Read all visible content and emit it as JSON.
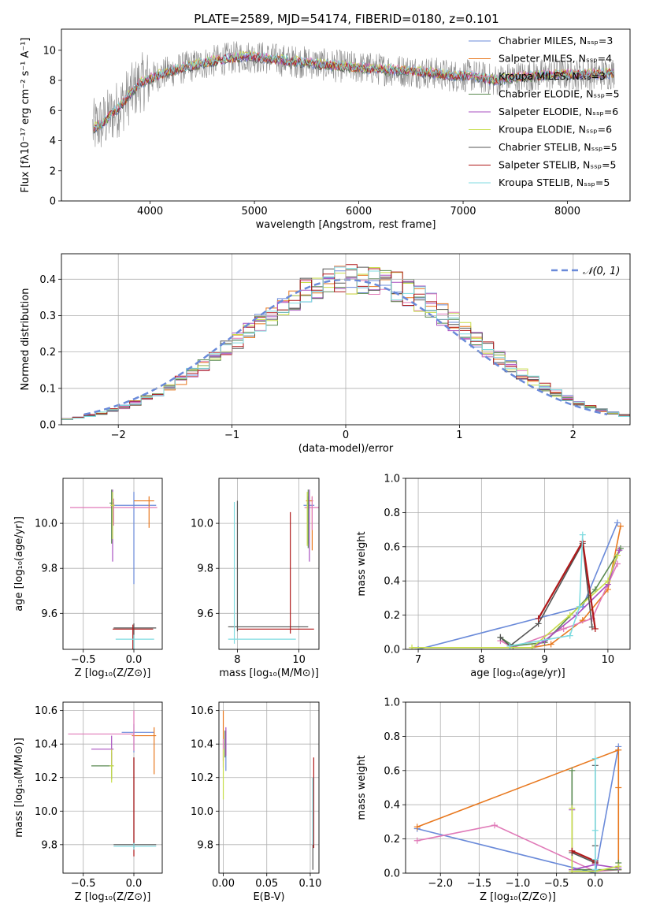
{
  "colors": {
    "chabrier_miles": "#6a8ad9",
    "salpeter_miles": "#e8781e",
    "kroupa_miles": "#e07ab8",
    "chabrier_elodie": "#5a8a50",
    "salpeter_elodie": "#a84fc0",
    "kroupa_elodie": "#c7dd4a",
    "chabrier_stelib": "#555555",
    "salpeter_stelib": "#b0191a",
    "kroupa_stelib": "#7fdbe0",
    "data": "#888888",
    "grid": "#b0b0b0"
  },
  "chart_data": [
    {
      "id": "spectrum",
      "type": "line",
      "title": "PLATE=2589, MJD=54174, FIBERID=0180, z=0.101",
      "xlabel": "wavelength [Angstrom, rest frame]",
      "ylabel": "Flux [fλ10⁻¹⁷ erg cm⁻² s⁻¹ A⁻¹]",
      "xlim": [
        3150,
        8600
      ],
      "ylim": [
        0,
        11.4
      ],
      "xticks": [
        "4000",
        "5000",
        "6000",
        "7000",
        "8000"
      ],
      "yticks": [
        "0",
        "2",
        "4",
        "6",
        "8",
        "10"
      ],
      "grid": false,
      "legend_position": "top-right",
      "legend": [
        "Chabrier MILES, Nₛₛₚ=3",
        "Salpeter MILES, Nₛₛₚ=4",
        "Kroupa MILES, Nₛₛₚ=3",
        "Chabrier ELODIE, Nₛₛₚ=5",
        "Salpeter ELODIE, Nₛₛₚ=6",
        "Kroupa ELODIE, Nₛₛₚ=6",
        "Chabrier STELIB, Nₛₛₚ=5",
        "Salpeter STELIB, Nₛₛₚ=5",
        "Kroupa STELIB, Nₛₛₚ=5"
      ],
      "continuum": {
        "x": [
          3450,
          3550,
          3700,
          3900,
          4100,
          4300,
          4500,
          4700,
          4900,
          5100,
          5300,
          5500,
          5700,
          5900,
          6100,
          6300,
          6500,
          6700,
          6900,
          7100,
          7300,
          7500,
          7700,
          7900,
          8100,
          8300,
          8450
        ],
        "y": [
          4.8,
          5.2,
          6.2,
          7.8,
          8.4,
          8.8,
          9.1,
          9.4,
          9.6,
          9.5,
          9.3,
          9.2,
          9.0,
          8.9,
          8.8,
          8.7,
          8.6,
          8.5,
          8.3,
          8.3,
          8.0,
          8.2,
          8.3,
          8.4,
          8.4,
          8.4,
          8.5
        ]
      }
    },
    {
      "id": "residuals",
      "type": "line",
      "xlabel": "(data-model)/error",
      "ylabel": "Normed distribution",
      "xlim": [
        -2.5,
        2.5
      ],
      "ylim": [
        0,
        0.47
      ],
      "xticks": [
        "−2",
        "−1",
        "0",
        "1",
        "2"
      ],
      "yticks": [
        "0.0",
        "0.1",
        "0.2",
        "0.3",
        "0.4"
      ],
      "grid": true,
      "legend_position": "top-right",
      "legend": [
        "𝒩(0, 1)"
      ],
      "gaussian": {
        "mean": 0,
        "sigma": 1,
        "xrange": [
          -2.3,
          2.3
        ]
      }
    },
    {
      "id": "age_vs_Z",
      "type": "scatter",
      "xlabel": "Z [log₁₀(Z/Z⊙)]",
      "ylabel": "age  [log₁₀(age/yr)]",
      "xlim": [
        -0.7,
        0.28
      ],
      "ylim": [
        9.44,
        10.2
      ],
      "xticks": [
        "−0.5",
        "0.0"
      ],
      "yticks": [
        "9.6",
        "9.8",
        "10.0"
      ],
      "grid": true,
      "points": [
        {
          "x": 0.0,
          "y": 10.08,
          "x_err": [
            0.22,
            0.22
          ],
          "y_err": [
            0.35,
            0.06
          ]
        },
        {
          "x": 0.15,
          "y": 10.1,
          "x_err": [
            0.15,
            0.05
          ],
          "y_err": [
            0.12,
            0.02
          ]
        },
        {
          "x": -0.2,
          "y": 10.07,
          "x_err": [
            0.43,
            0.43
          ],
          "y_err": [
            0.08,
            0.04
          ]
        },
        {
          "x": -0.22,
          "y": 10.09,
          "x_err": [
            0.02,
            0.02
          ],
          "y_err": [
            0.18,
            0.06
          ]
        },
        {
          "x": -0.21,
          "y": 10.08,
          "x_err": [
            0.02,
            0.02
          ],
          "y_err": [
            0.25,
            0.07
          ]
        },
        {
          "x": -0.21,
          "y": 10.08,
          "x_err": [
            0.02,
            0.02
          ],
          "y_err": [
            0.15,
            0.06
          ]
        },
        {
          "x": 0.0,
          "y": 9.535,
          "x_err": [
            0.2,
            0.22
          ],
          "y_err": [
            0.55,
            0.02
          ]
        },
        {
          "x": -0.01,
          "y": 9.53,
          "x_err": [
            0.2,
            0.2
          ],
          "y_err": [
            0.55,
            0.02
          ]
        },
        {
          "x": 0.0,
          "y": 9.485,
          "x_err": [
            0.18,
            0.2
          ],
          "y_err": [
            0.59,
            0.02
          ]
        }
      ]
    },
    {
      "id": "age_vs_mass",
      "type": "scatter",
      "xlabel": "mass [log₁₀(M/M⊙)]",
      "ylabel": "",
      "xlim": [
        7.4,
        10.65
      ],
      "ylim": [
        9.44,
        10.2
      ],
      "xticks": [
        "8",
        "10"
      ],
      "yticks": [
        "9.6",
        "9.8",
        "10.0"
      ],
      "grid": true,
      "points": [
        {
          "x": 10.3,
          "y": 10.08,
          "x_err": [
            0.15,
            0.2
          ],
          "y_err": [
            0.17,
            0.04
          ]
        },
        {
          "x": 10.43,
          "y": 10.1,
          "x_err": [
            0.2,
            0.03
          ],
          "y_err": [
            0.22,
            0.02
          ]
        },
        {
          "x": 10.43,
          "y": 10.07,
          "x_err": [
            0.25,
            0.25
          ],
          "y_err": [
            0.1,
            0.05
          ]
        },
        {
          "x": 10.3,
          "y": 10.09,
          "x_err": [
            0.02,
            0.02
          ],
          "y_err": [
            0.2,
            0.06
          ]
        },
        {
          "x": 10.34,
          "y": 10.08,
          "x_err": [
            0.02,
            0.02
          ],
          "y_err": [
            0.25,
            0.07
          ]
        },
        {
          "x": 10.27,
          "y": 10.08,
          "x_err": [
            0.02,
            0.02
          ],
          "y_err": [
            0.18,
            0.06
          ]
        },
        {
          "x": 8.0,
          "y": 9.54,
          "x_err": [
            0.3,
            2.3
          ],
          "y_err": [
            0.02,
            0.56
          ]
        },
        {
          "x": 9.72,
          "y": 9.53,
          "x_err": [
            1.7,
            0.77
          ],
          "y_err": [
            0.02,
            0.52
          ]
        },
        {
          "x": 7.9,
          "y": 9.485,
          "x_err": [
            0.2,
            2.0
          ],
          "y_err": [
            0.02,
            0.61
          ]
        }
      ]
    },
    {
      "id": "mass_weight_vs_age",
      "type": "line",
      "xlabel": "age  [log₁₀(age/yr)]",
      "ylabel": "mass weight",
      "xlim": [
        6.8,
        10.35
      ],
      "ylim": [
        0,
        1.0
      ],
      "xticks": [
        "7",
        "8",
        "9",
        "10"
      ],
      "yticks": [
        "0.0",
        "0.2",
        "0.4",
        "0.6",
        "0.8",
        "1.0"
      ],
      "grid": true,
      "series": [
        {
          "x": [
            7.0,
            9.6,
            10.15
          ],
          "y": [
            0.0,
            0.25,
            0.74
          ]
        },
        {
          "x": [
            8.8,
            9.1,
            9.6,
            10.0,
            10.2
          ],
          "y": [
            0.01,
            0.03,
            0.17,
            0.35,
            0.72
          ]
        },
        {
          "x": [
            8.3,
            8.5,
            9.3,
            9.75,
            10.15
          ],
          "y": [
            0.05,
            0.01,
            0.12,
            0.18,
            0.5
          ]
        },
        {
          "x": [
            8.3,
            8.5,
            9.0,
            9.8,
            10.2
          ],
          "y": [
            0.07,
            0.02,
            0.04,
            0.35,
            0.59
          ]
        },
        {
          "x": [
            8.8,
            9.0,
            9.5,
            10.0,
            10.18
          ],
          "y": [
            0.01,
            0.05,
            0.2,
            0.38,
            0.58
          ]
        },
        {
          "x": [
            6.9,
            8.8,
            9.4,
            10.0,
            10.15
          ],
          "y": [
            0.01,
            0.01,
            0.2,
            0.4,
            0.55
          ]
        },
        {
          "x": [
            8.3,
            8.45,
            8.9,
            9.6,
            9.75
          ],
          "y": [
            0.07,
            0.02,
            0.15,
            0.62,
            0.13
          ]
        },
        {
          "x": [
            8.9,
            9.6,
            9.8
          ],
          "y": [
            0.18,
            0.63,
            0.12
          ]
        },
        {
          "x": [
            8.45,
            9.4,
            9.55,
            9.6
          ],
          "y": [
            0.02,
            0.08,
            0.25,
            0.67
          ]
        }
      ]
    },
    {
      "id": "mass_vs_Z",
      "type": "scatter",
      "xlabel": "Z [log₁₀(Z/Z⊙)]",
      "ylabel": "mass [log₁₀(M/M⊙)]",
      "xlim": [
        -0.7,
        0.28
      ],
      "ylim": [
        9.63,
        10.65
      ],
      "xticks": [
        "−0.5",
        "0.0"
      ],
      "yticks": [
        "9.8",
        "10.0",
        "10.2",
        "10.4",
        "10.6"
      ],
      "grid": true,
      "points": [
        {
          "x": 0.0,
          "y": 10.47,
          "x_err": [
            0.12,
            0.2
          ],
          "y_err": [
            0.12,
            0.05
          ]
        },
        {
          "x": 0.2,
          "y": 10.45,
          "x_err": [
            0.22,
            0.02
          ],
          "y_err": [
            0.23,
            0.05
          ]
        },
        {
          "x": 0.0,
          "y": 10.46,
          "x_err": [
            0.65,
            0.0
          ],
          "y_err": [
            0.1,
            0.14
          ]
        },
        {
          "x": -0.22,
          "y": 10.27,
          "x_err": [
            0.2,
            0.02
          ],
          "y_err": [
            0.08,
            0.08
          ]
        },
        {
          "x": -0.22,
          "y": 10.37,
          "x_err": [
            0.2,
            0.02
          ],
          "y_err": [
            0.1,
            0.08
          ]
        },
        {
          "x": -0.22,
          "y": 10.27,
          "x_err": [
            0.02,
            0.02
          ],
          "y_err": [
            0.1,
            0.1
          ]
        },
        {
          "x": 0.0,
          "y": 9.8,
          "x_err": [
            0.2,
            0.22
          ],
          "y_err": [
            0.02,
            0.52
          ]
        },
        {
          "x": 0.0,
          "y": 9.93,
          "x_err": [
            0.0,
            0.0
          ],
          "y_err": [
            0.2,
            0.39
          ]
        },
        {
          "x": 0.0,
          "y": 9.79,
          "x_err": [
            0.2,
            0.22
          ],
          "y_err": [
            0.02,
            0.02
          ]
        }
      ]
    },
    {
      "id": "mass_vs_EBV",
      "type": "scatter",
      "xlabel": "E(B-V)",
      "ylabel": "",
      "xlim": [
        -0.005,
        0.11
      ],
      "ylim": [
        9.63,
        10.65
      ],
      "xticks": [
        "0.00",
        "0.05",
        "0.10"
      ],
      "yticks": [
        "9.8",
        "10.0",
        "10.2",
        "10.4",
        "10.6"
      ],
      "grid": true,
      "points": [
        {
          "x": 0.003,
          "y": 10.36,
          "x_err": [
            0.0,
            0.0
          ],
          "y_err": [
            0.12,
            0.12
          ]
        },
        {
          "x": 0.0,
          "y": 10.4,
          "x_err": [
            0.0,
            0.0
          ],
          "y_err": [
            0.1,
            0.2
          ]
        },
        {
          "x": 0.0,
          "y": 10.38,
          "x_err": [
            0.0,
            0.0
          ],
          "y_err": [
            0.12,
            0.05
          ]
        },
        {
          "x": 0.002,
          "y": 10.42,
          "x_err": [
            0.0,
            0.0
          ],
          "y_err": [
            0.1,
            0.06
          ]
        },
        {
          "x": 0.003,
          "y": 10.38,
          "x_err": [
            0.0,
            0.0
          ],
          "y_err": [
            0.05,
            0.12
          ]
        },
        {
          "x": 0.0,
          "y": 10.27,
          "x_err": [
            0.0,
            0.0
          ],
          "y_err": [
            0.2,
            0.1
          ]
        },
        {
          "x": 0.103,
          "y": 10.0,
          "x_err": [
            0.0,
            0.0
          ],
          "y_err": [
            0.35,
            0.2
          ]
        },
        {
          "x": 0.104,
          "y": 10.08,
          "x_err": [
            0.0,
            0.0
          ],
          "y_err": [
            0.3,
            0.24
          ]
        },
        {
          "x": 0.103,
          "y": 10.0,
          "x_err": [
            0.0,
            0.0
          ],
          "y_err": [
            0.2,
            0.2
          ]
        }
      ]
    },
    {
      "id": "mass_weight_vs_Z",
      "type": "line",
      "xlabel": "Z [log₁₀(Z/Z⊙)]",
      "ylabel": "mass weight",
      "xlim": [
        -2.45,
        0.45
      ],
      "ylim": [
        0,
        1.0
      ],
      "xticks": [
        "−2.0",
        "−1.5",
        "−1.0",
        "−0.5",
        "0.0"
      ],
      "yticks": [
        "0.0",
        "0.2",
        "0.4",
        "0.6",
        "0.8",
        "1.0"
      ],
      "grid": true,
      "series": [
        {
          "x": [
            -2.3,
            0.0,
            0.3
          ],
          "y": [
            0.26,
            0.0,
            0.74
          ]
        },
        {
          "x": [
            -2.3,
            0.3,
            0.3,
            0.3
          ],
          "y": [
            0.27,
            0.72,
            0.5,
            0.02
          ]
        },
        {
          "x": [
            -2.3,
            -1.3,
            0.0,
            0.3
          ],
          "y": [
            0.19,
            0.28,
            0.01,
            0.02
          ]
        },
        {
          "x": [
            -0.3,
            -0.3,
            0.3,
            0.3
          ],
          "y": [
            0.6,
            0.02,
            0.02,
            0.06
          ]
        },
        {
          "x": [
            -0.3,
            -0.3,
            0.0,
            0.3
          ],
          "y": [
            0.37,
            0.02,
            0.05,
            0.03
          ]
        },
        {
          "x": [
            -0.3,
            -0.3,
            0.0,
            0.3
          ],
          "y": [
            0.38,
            0.01,
            0.01,
            0.04
          ]
        },
        {
          "x": [
            0.0,
            0.0,
            0.0,
            -0.3
          ],
          "y": [
            0.63,
            0.16,
            0.06,
            0.12
          ]
        },
        {
          "x": [
            -0.3,
            0.0,
            0.0
          ],
          "y": [
            0.13,
            0.07,
            0.06
          ]
        },
        {
          "x": [
            0.0,
            0.0,
            0.0,
            0.0
          ],
          "y": [
            0.67,
            0.25,
            0.08,
            0.02
          ]
        }
      ]
    }
  ]
}
